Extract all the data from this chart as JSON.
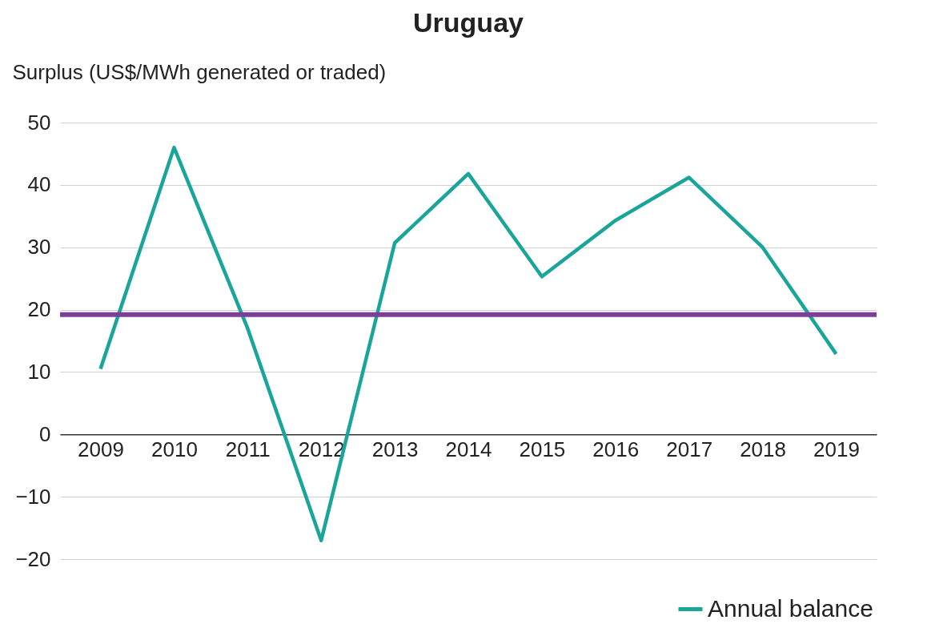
{
  "chart_data": {
    "type": "line",
    "title": "Uruguay",
    "ylabel": "Surplus (US$/MWh generated or traded)",
    "categories": [
      "2009",
      "2010",
      "2011",
      "2012",
      "2013",
      "2014",
      "2015",
      "2016",
      "2017",
      "2018",
      "2019"
    ],
    "series": [
      {
        "name": "Annual balance",
        "color": "#1aa59a",
        "values": [
          10.5,
          46,
          17,
          -17,
          30.7,
          41.8,
          25.3,
          34.3,
          41.2,
          30,
          12.9
        ]
      }
    ],
    "ylim": [
      -20,
      50
    ],
    "yticks": [
      -20,
      -10,
      0,
      10,
      20,
      30,
      40,
      50
    ],
    "ref_lines": [
      {
        "axis": "y",
        "value": 19.2,
        "color": "#7b3f98"
      }
    ],
    "grid": "y",
    "legend": "bottom right",
    "marker": "none",
    "line_style": "solid"
  }
}
